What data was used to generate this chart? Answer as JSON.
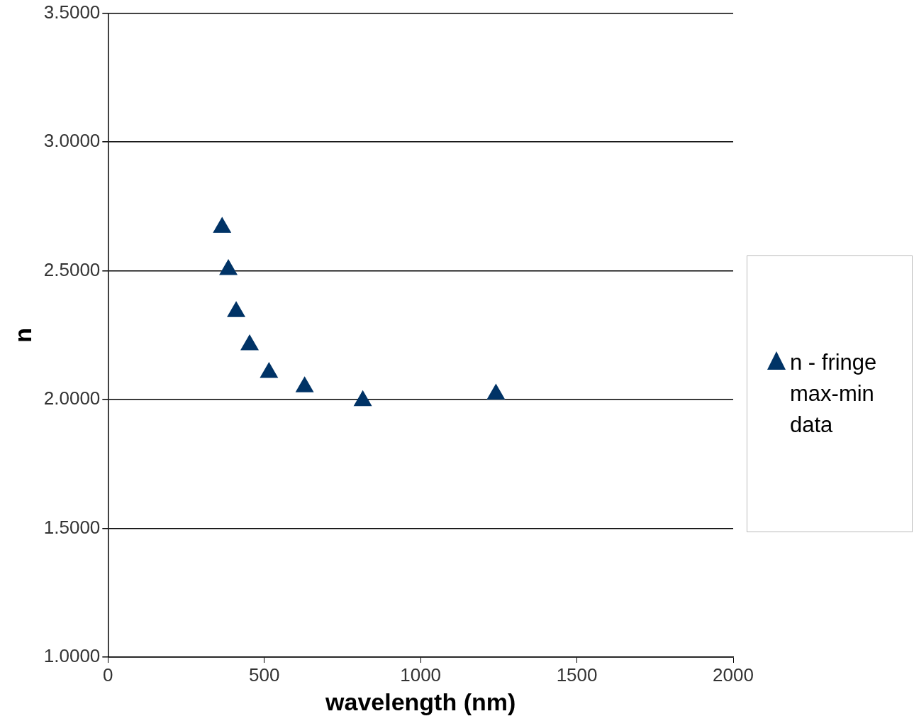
{
  "chart_data": {
    "type": "scatter",
    "xlabel": "wavelength (nm)",
    "ylabel": "n",
    "series": [
      {
        "name": "n - fringe max-min data",
        "color": "#003366",
        "x": [
          365,
          385,
          410,
          453,
          515,
          629,
          815,
          1241
        ],
        "values": [
          2.668,
          2.504,
          2.341,
          2.212,
          2.105,
          2.049,
          1.995,
          2.021
        ]
      }
    ],
    "xlim": [
      0,
      2000
    ],
    "xticks": [
      0,
      500,
      1000,
      1500,
      2000
    ],
    "ylim": [
      1,
      3.5
    ],
    "yticks": [
      {
        "value": 1,
        "label": "1.0000"
      },
      {
        "value": 1.5,
        "label": "1.5000"
      },
      {
        "value": 2,
        "label": "2.0000"
      },
      {
        "value": 2.5,
        "label": "2.5000"
      },
      {
        "value": 3,
        "label": "3.0000"
      },
      {
        "value": 3.5,
        "label": "3.5000"
      }
    ],
    "grid": "y",
    "legend": "right",
    "marker": "triangle"
  }
}
